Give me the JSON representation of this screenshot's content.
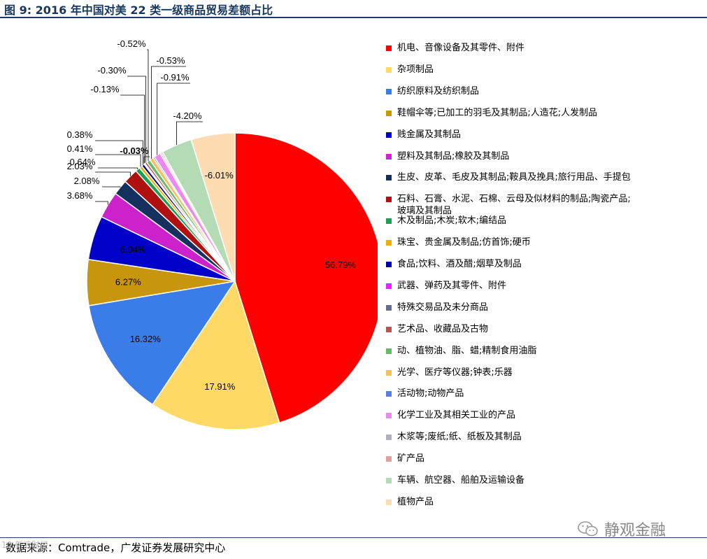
{
  "header": {
    "title": "图 9: 2016 年中国对美 22 类一级商品贸易差额占比"
  },
  "footer": {
    "source": "数据来源：Comtrade，广发证券发展研究中心"
  },
  "watermark": {
    "text": "静观金融",
    "left_mark": "10 新浪财经"
  },
  "chart_data": {
    "type": "pie",
    "start_angle_deg": 0,
    "direction": "clockwise",
    "legend_position": "right",
    "slices": [
      {
        "name": "机电、音像设备及其零件、附件",
        "value": 56.79,
        "label": "56.79%",
        "color": "#ff0000"
      },
      {
        "name": "杂项制品",
        "value": 17.91,
        "label": "17.91%",
        "color": "#ffd966"
      },
      {
        "name": "纺织原料及纺织制品",
        "value": 16.32,
        "label": "16.32%",
        "color": "#3b7de8"
      },
      {
        "name": "鞋帽伞等;已加工的羽毛及其制品;人造花;人发制品",
        "value": 6.27,
        "label": "6.27%",
        "color": "#c8960c"
      },
      {
        "name": "贱金属及其制品",
        "value": 6.04,
        "label": "6.04%",
        "color": "#0000c8"
      },
      {
        "name": "塑料及其制品;橡胶及其制品",
        "value": 3.68,
        "label": "3.68%",
        "color": "#cc22cc"
      },
      {
        "name": "生皮、皮革、毛皮及其制品;鞍具及挽具;旅行用品、手提包",
        "value": 2.08,
        "label": "2.08%",
        "color": "#14305e"
      },
      {
        "name": "石料、石膏、水泥、石棉、云母及似材料的制品;陶瓷产品;玻璃及其制品",
        "value": 2.03,
        "label": "2.03%",
        "color": "#b01010"
      },
      {
        "name": "木及制品;木炭;软木;编结品",
        "value": 0.64,
        "label": "0.64%",
        "color": "#1aa050"
      },
      {
        "name": "珠宝、贵金属及制品;仿首饰;硬币",
        "value": 0.41,
        "label": "0.41%",
        "color": "#f0b000"
      },
      {
        "name": "食品;饮料、酒及醋;烟草及制品",
        "value": 0.38,
        "label": "0.38%",
        "color": "#0000a0"
      },
      {
        "name": "武器、弹药及其零件、附件",
        "value": 0.03,
        "label": "-0.03%",
        "color": "#ee22ee"
      },
      {
        "name": "特殊交易品及未分商品",
        "value": 0.13,
        "label": "-0.13%",
        "color": "#6a6a90"
      },
      {
        "name": "艺术品、收藏品及古物",
        "value": 0.3,
        "label": "-0.30%",
        "color": "#c05050"
      },
      {
        "name": "动、植物油、脂、蜡;精制食用油脂",
        "value": 0.52,
        "label": "-0.52%",
        "color": "#66bb66"
      },
      {
        "name": "光学、医疗等仪器;钟表;乐器",
        "value": 0.53,
        "label": "-0.53%",
        "color": "#f5c060"
      },
      {
        "name": "活动物;动物产品",
        "value": 0.2,
        "label": "",
        "color": "#5a7de0"
      },
      {
        "name": "化学工业及其相关工业的产品",
        "value": 0.91,
        "label": "-0.91%",
        "color": "#ee88ee"
      },
      {
        "name": "木浆等;废纸;纸、纸板及其制品",
        "value": 0.2,
        "label": "",
        "color": "#b0b0b8"
      },
      {
        "name": "矿产品",
        "value": 0.2,
        "label": "",
        "color": "#e0a0a0"
      },
      {
        "name": "车辆、航空器、船舶及运输设备",
        "value": 4.2,
        "label": "-4.20%",
        "color": "#b4dcb4"
      },
      {
        "name": "植物产品",
        "value": 6.01,
        "label": "-6.01%",
        "color": "#fcdcb0"
      }
    ],
    "legend": [
      {
        "label": "机电、音像设备及其零件、附件",
        "color": "#ff0000"
      },
      {
        "label": "杂项制品",
        "color": "#ffd966"
      },
      {
        "label": "纺织原料及纺织制品",
        "color": "#3b7de8"
      },
      {
        "label": "鞋帽伞等;已加工的羽毛及其制品;人造花;人发制品",
        "color": "#c8960c"
      },
      {
        "label": "贱金属及其制品",
        "color": "#0000c8"
      },
      {
        "label": "塑料及其制品;橡胶及其制品",
        "color": "#cc22cc"
      },
      {
        "label": "生皮、皮革、毛皮及其制品;鞍具及挽具;旅行用品、手提包",
        "color": "#14305e"
      },
      {
        "label": "石料、石膏、水泥、石棉、云母及似材料的制品;陶瓷产品;玻璃及其制品",
        "color": "#b01010"
      },
      {
        "label": "木及制品;木炭;软木;编结品",
        "color": "#1aa050"
      },
      {
        "label": "珠宝、贵金属及制品;仿首饰;硬币",
        "color": "#f0b000"
      },
      {
        "label": "食品;饮料、酒及醋;烟草及制品",
        "color": "#0000a0"
      },
      {
        "label": "武器、弹药及其零件、附件",
        "color": "#ee22ee"
      },
      {
        "label": "特殊交易品及未分商品",
        "color": "#6a6a90"
      },
      {
        "label": "艺术品、收藏品及古物",
        "color": "#c05050"
      },
      {
        "label": "动、植物油、脂、蜡;精制食用油脂",
        "color": "#66bb66"
      },
      {
        "label": "光学、医疗等仪器;钟表;乐器",
        "color": "#f5c060"
      },
      {
        "label": "活动物;动物产品",
        "color": "#5a7de0"
      },
      {
        "label": "化学工业及其相关工业的产品",
        "color": "#ee88ee"
      },
      {
        "label": "木浆等;废纸;纸、纸板及其制品",
        "color": "#b0b0b8"
      },
      {
        "label": "矿产品",
        "color": "#e0a0a0"
      },
      {
        "label": "车辆、航空器、船舶及运输设备",
        "color": "#b4dcb4"
      },
      {
        "label": "植物产品",
        "color": "#fcdcb0"
      }
    ]
  }
}
